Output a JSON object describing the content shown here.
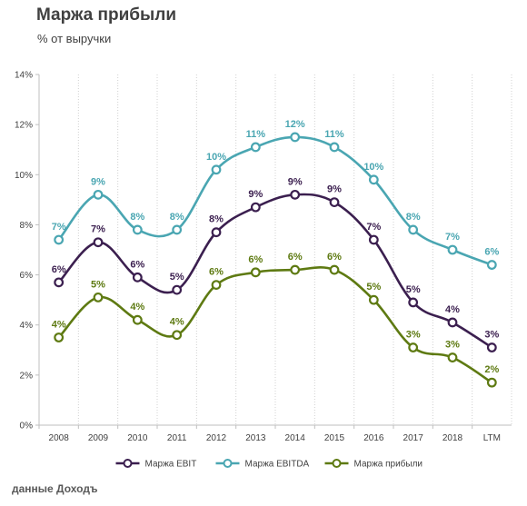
{
  "title": "Маржа прибыли",
  "subtitle": "% от выручки",
  "source": "данные Доходъ",
  "chart_data": {
    "type": "line",
    "categories": [
      "2008",
      "2009",
      "2010",
      "2011",
      "2012",
      "2013",
      "2014",
      "2015",
      "2016",
      "2017",
      "2018",
      "LTM"
    ],
    "ylim": [
      0,
      14
    ],
    "yticks": [
      0,
      2,
      4,
      6,
      8,
      10,
      12,
      14
    ],
    "ytick_format": "%",
    "grid": "vertical-dotted",
    "legend_position": "bottom",
    "series": [
      {
        "name": "Маржа EBIT",
        "color": "#3b1f4f",
        "values": [
          5.7,
          7.3,
          5.9,
          5.4,
          7.7,
          8.7,
          9.2,
          8.9,
          7.4,
          4.9,
          4.1,
          3.1
        ],
        "labels": [
          "6%",
          "7%",
          "6%",
          "5%",
          "8%",
          "9%",
          "9%",
          "9%",
          "7%",
          "5%",
          "4%",
          "3%"
        ]
      },
      {
        "name": "Маржа EBITDA",
        "color": "#4aa6b2",
        "values": [
          7.4,
          9.2,
          7.8,
          7.8,
          10.2,
          11.1,
          11.5,
          11.1,
          9.8,
          7.8,
          7.0,
          6.4
        ],
        "labels": [
          "7%",
          "9%",
          "8%",
          "8%",
          "10%",
          "11%",
          "12%",
          "11%",
          "10%",
          "8%",
          "7%",
          "6%"
        ]
      },
      {
        "name": "Маржа прибыли",
        "color": "#5e7a12",
        "values": [
          3.5,
          5.1,
          4.2,
          3.6,
          5.6,
          6.1,
          6.2,
          6.2,
          5.0,
          3.1,
          2.7,
          1.7
        ],
        "labels": [
          "4%",
          "5%",
          "4%",
          "4%",
          "6%",
          "6%",
          "6%",
          "6%",
          "5%",
          "3%",
          "3%",
          "2%"
        ]
      }
    ]
  }
}
